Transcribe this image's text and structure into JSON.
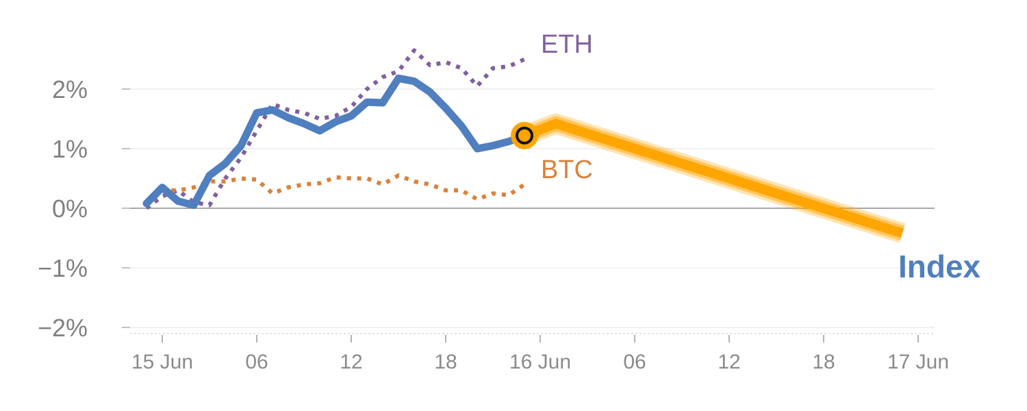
{
  "chart_data": {
    "type": "line",
    "y_unit": "%",
    "ylim": [
      -2.2,
      2.6
    ],
    "y_ticks": [
      {
        "value": 2,
        "label": "2%"
      },
      {
        "value": 1,
        "label": "1%"
      },
      {
        "value": 0,
        "label": "0%"
      },
      {
        "value": -1,
        "label": "−1%"
      },
      {
        "value": -2,
        "label": "−2%"
      }
    ],
    "x_ticks": [
      {
        "hour": 0,
        "label": "15 Jun"
      },
      {
        "hour": 6,
        "label": "06"
      },
      {
        "hour": 12,
        "label": "12"
      },
      {
        "hour": 18,
        "label": "18"
      },
      {
        "hour": 24,
        "label": "16 Jun"
      },
      {
        "hour": 30,
        "label": "06"
      },
      {
        "hour": 36,
        "label": "12"
      },
      {
        "hour": 42,
        "label": "18"
      },
      {
        "hour": 48,
        "label": "17 Jun"
      }
    ],
    "grid": true,
    "series": [
      {
        "name": "ETH",
        "style": "dotted",
        "color": "#8060a0",
        "x": [
          -1,
          0,
          1,
          2,
          3,
          4,
          5,
          6,
          7,
          8,
          9,
          10,
          11,
          12,
          13,
          14,
          15,
          16,
          17,
          18,
          19,
          20,
          21,
          22,
          23
        ],
        "y": [
          0.0,
          0.2,
          0.3,
          0.1,
          0.05,
          0.5,
          0.85,
          1.3,
          1.75,
          1.65,
          1.6,
          1.5,
          1.55,
          1.7,
          2.0,
          2.2,
          2.3,
          2.65,
          2.4,
          2.45,
          2.35,
          2.05,
          2.35,
          2.38,
          2.5
        ]
      },
      {
        "name": "BTC",
        "style": "dotted",
        "color": "#d9823b",
        "x": [
          -1,
          0,
          1,
          2,
          3,
          4,
          5,
          6,
          7,
          8,
          9,
          10,
          11,
          12,
          13,
          14,
          15,
          16,
          17,
          18,
          19,
          20,
          21,
          22,
          23
        ],
        "y": [
          0.05,
          0.3,
          0.3,
          0.35,
          0.45,
          0.45,
          0.5,
          0.48,
          0.25,
          0.35,
          0.4,
          0.42,
          0.52,
          0.5,
          0.5,
          0.4,
          0.55,
          0.45,
          0.4,
          0.3,
          0.3,
          0.15,
          0.25,
          0.22,
          0.4
        ]
      },
      {
        "name": "Index",
        "style": "solid",
        "color": "#4f7fbf",
        "x": [
          -1,
          0,
          1,
          2,
          3,
          4,
          5,
          6,
          7,
          8,
          9,
          10,
          11,
          12,
          13,
          14,
          15,
          16,
          17,
          18,
          19,
          20,
          21,
          22,
          23
        ],
        "y": [
          0.08,
          0.35,
          0.12,
          0.05,
          0.55,
          0.75,
          1.05,
          1.6,
          1.65,
          1.52,
          1.42,
          1.3,
          1.45,
          1.55,
          1.78,
          1.77,
          2.18,
          2.13,
          1.95,
          1.68,
          1.38,
          1.0,
          1.05,
          1.12,
          1.22
        ]
      }
    ],
    "forecast": {
      "color": "#ffa500",
      "x": [
        23,
        25,
        47
      ],
      "y": [
        1.22,
        1.42,
        -0.42
      ]
    },
    "marker": {
      "x": 23,
      "y": 1.22
    }
  }
}
